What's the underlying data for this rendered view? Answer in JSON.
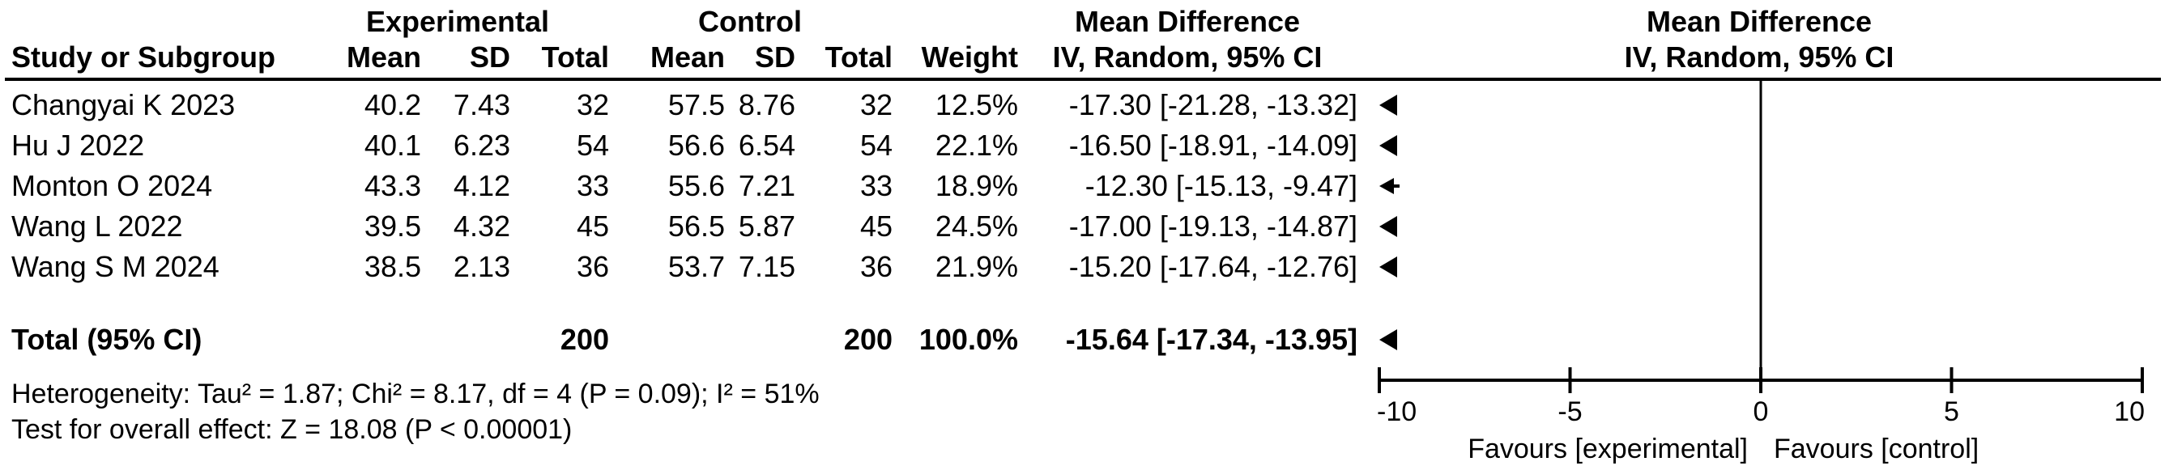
{
  "header": {
    "study_col": "Study or Subgroup",
    "group_experimental": "Experimental",
    "group_control": "Control",
    "mean_difference_text_col": "Mean Difference",
    "mean_difference_plot_col": "Mean Difference",
    "exp_mean": "Mean",
    "exp_sd": "SD",
    "exp_total": "Total",
    "ctrl_mean": "Mean",
    "ctrl_sd": "SD",
    "ctrl_total": "Total",
    "weight": "Weight",
    "method_text_col": "IV, Random, 95% CI",
    "method_plot_col": "IV, Random, 95% CI"
  },
  "chart_data": {
    "type": "forest",
    "effect_measure": "Mean Difference",
    "model": "IV, Random, 95% CI",
    "x_axis": {
      "min": -10,
      "max": 10,
      "ticks": [
        -10,
        -5,
        0,
        5,
        10
      ]
    },
    "favours_left": "Favours [experimental]",
    "favours_right": "Favours [control]",
    "studies": [
      {
        "name": "Changyai K 2023",
        "exp_mean": "40.2",
        "exp_sd": "7.43",
        "exp_total": "32",
        "ctrl_mean": "57.5",
        "ctrl_sd": "8.76",
        "ctrl_total": "32",
        "weight": "12.5%",
        "ci_text": "-17.30 [-21.28, -13.32]",
        "md": -17.3,
        "ci_low": -21.28,
        "ci_high": -13.32
      },
      {
        "name": "Hu J 2022",
        "exp_mean": "40.1",
        "exp_sd": "6.23",
        "exp_total": "54",
        "ctrl_mean": "56.6",
        "ctrl_sd": "6.54",
        "ctrl_total": "54",
        "weight": "22.1%",
        "ci_text": "-16.50 [-18.91, -14.09]",
        "md": -16.5,
        "ci_low": -18.91,
        "ci_high": -14.09
      },
      {
        "name": "Monton O 2024",
        "exp_mean": "43.3",
        "exp_sd": "4.12",
        "exp_total": "33",
        "ctrl_mean": "55.6",
        "ctrl_sd": "7.21",
        "ctrl_total": "33",
        "weight": "18.9%",
        "ci_text": "-12.30 [-15.13, -9.47]",
        "md": -12.3,
        "ci_low": -15.13,
        "ci_high": -9.47
      },
      {
        "name": "Wang L 2022",
        "exp_mean": "39.5",
        "exp_sd": "4.32",
        "exp_total": "45",
        "ctrl_mean": "56.5",
        "ctrl_sd": "5.87",
        "ctrl_total": "45",
        "weight": "24.5%",
        "ci_text": "-17.00 [-19.13, -14.87]",
        "md": -17.0,
        "ci_low": -19.13,
        "ci_high": -14.87
      },
      {
        "name": "Wang S M 2024",
        "exp_mean": "38.5",
        "exp_sd": "2.13",
        "exp_total": "36",
        "ctrl_mean": "53.7",
        "ctrl_sd": "7.15",
        "ctrl_total": "36",
        "weight": "21.9%",
        "ci_text": "-15.20 [-17.64, -12.76]",
        "md": -15.2,
        "ci_low": -17.64,
        "ci_high": -12.76
      }
    ],
    "total": {
      "label": "Total (95% CI)",
      "exp_total": "200",
      "ctrl_total": "200",
      "weight": "100.0%",
      "ci_text": "-15.64 [-17.34, -13.95]",
      "md": -15.64,
      "ci_low": -17.34,
      "ci_high": -13.95
    }
  },
  "footer": {
    "heterogeneity": "Heterogeneity: Tau² = 1.87; Chi² = 8.17, df = 4 (P = 0.09); I² = 51%",
    "overall_effect": "Test for overall effect: Z = 18.08 (P < 0.00001)"
  },
  "colors": {
    "ink": "#000000",
    "background": "#ffffff"
  }
}
